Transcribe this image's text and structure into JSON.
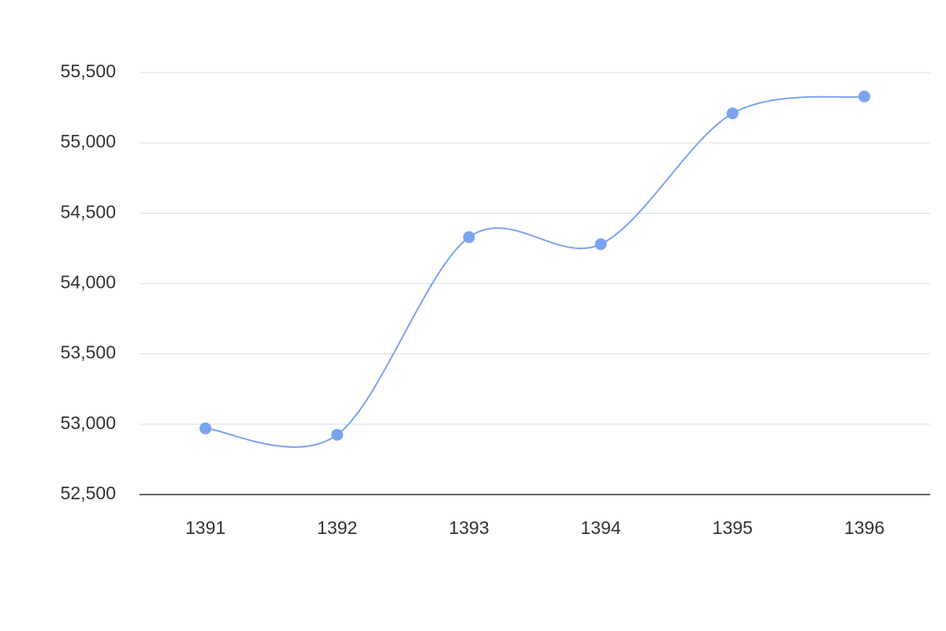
{
  "chart_data": {
    "type": "line",
    "categories": [
      "1391",
      "1392",
      "1393",
      "1394",
      "1395",
      "1396"
    ],
    "values": [
      52970,
      52925,
      54330,
      54280,
      55210,
      55330
    ],
    "color": "#7aa3ee",
    "ylim": [
      52500,
      55500
    ],
    "yticks": [
      {
        "value": 52500,
        "label": "52,500"
      },
      {
        "value": 53000,
        "label": "53,000"
      },
      {
        "value": 53500,
        "label": "53,500"
      },
      {
        "value": 54000,
        "label": "54,000"
      },
      {
        "value": 54500,
        "label": "54,500"
      },
      {
        "value": 55000,
        "label": "55,000"
      },
      {
        "value": 55500,
        "label": "55,500"
      }
    ],
    "grid": true,
    "smooth": true
  }
}
